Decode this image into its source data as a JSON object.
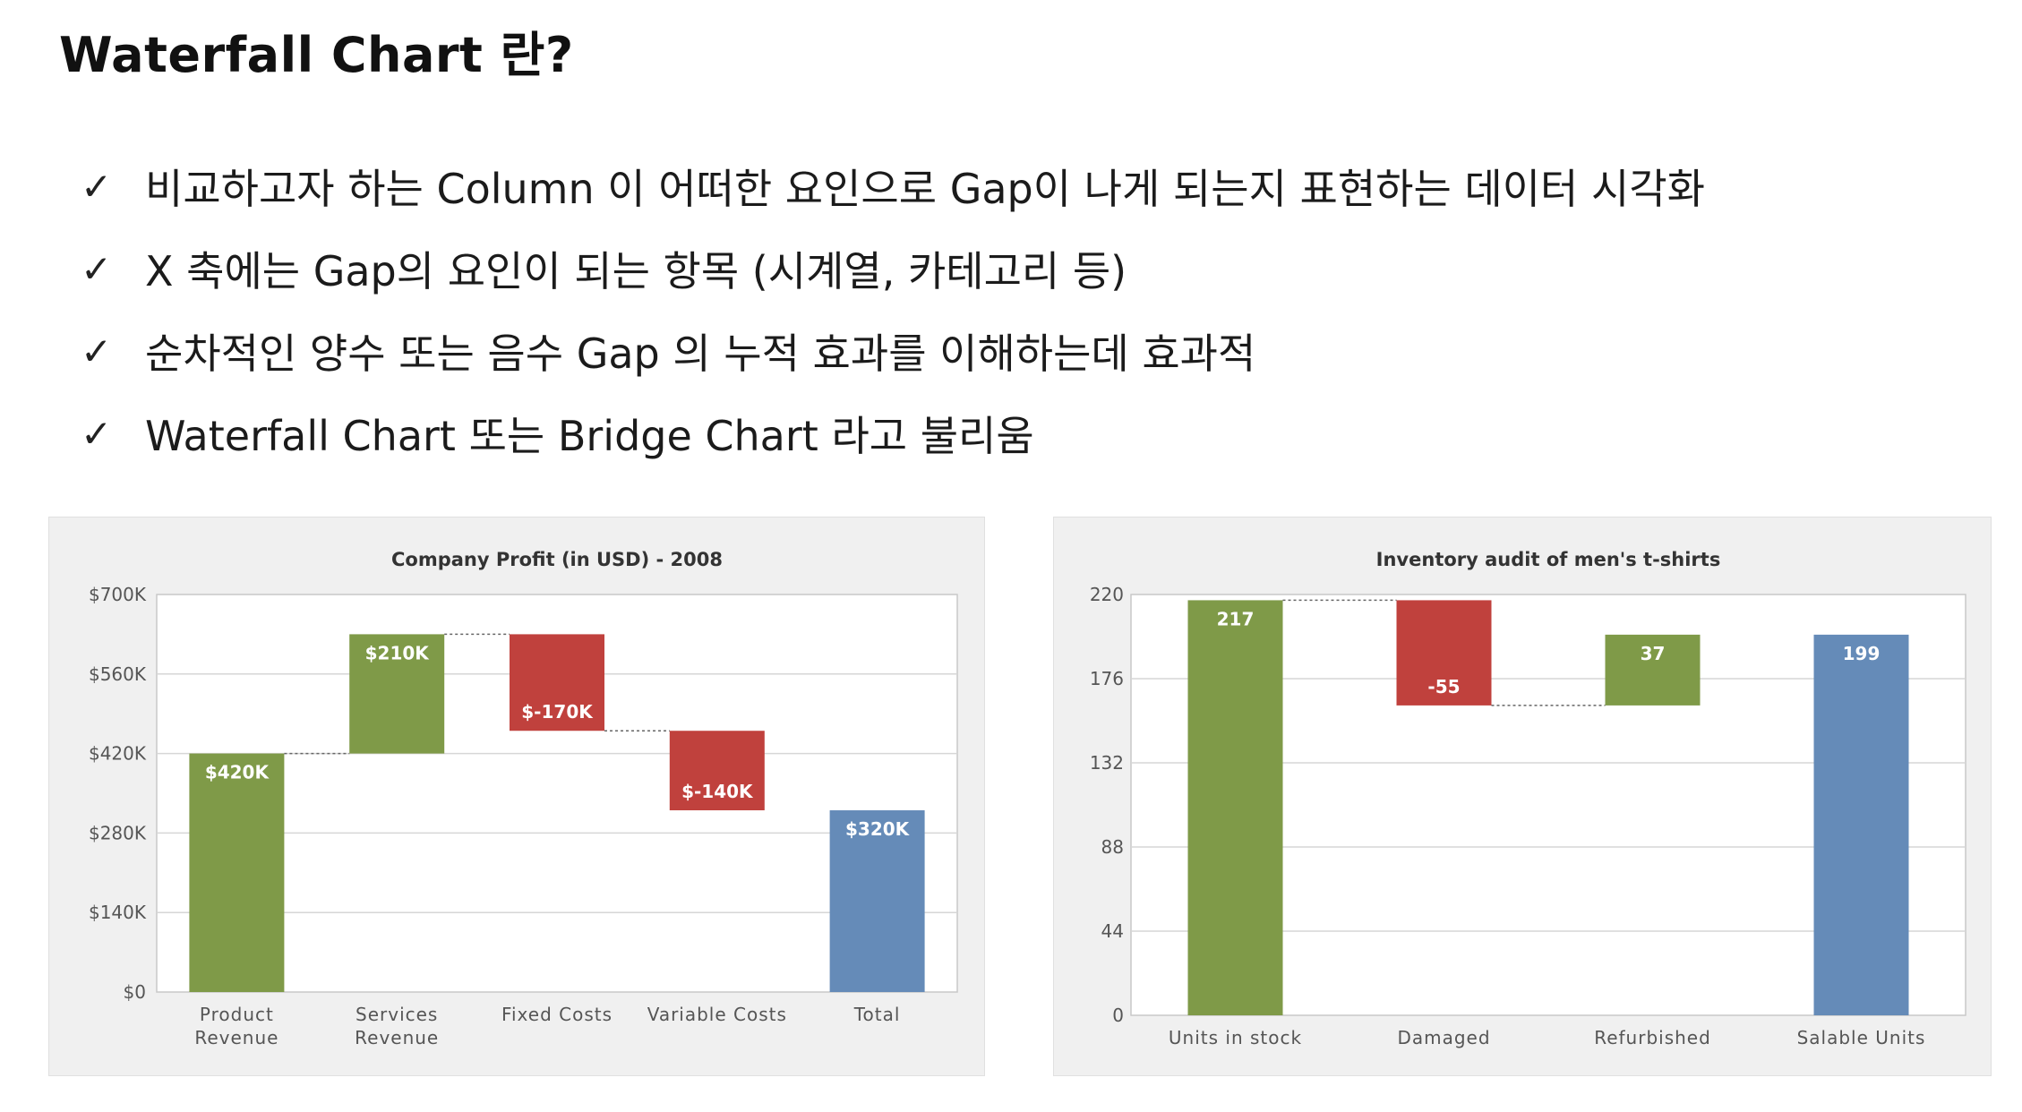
{
  "title": "Waterfall Chart 란?",
  "bullets": [
    {
      "mark": "✓",
      "text": "비교하고자 하는 Column 이 어떠한 요인으로 Gap이 나게 되는지 표현하는 데이터 시각화"
    },
    {
      "mark": "✓",
      "text": "X 축에는 Gap의 요인이 되는 항목 (시계열, 카테고리 등)"
    },
    {
      "mark": "✓",
      "text": "순차적인 양수 또는 음수 Gap 의 누적 효과를 이해하는데 효과적"
    },
    {
      "mark": "✓",
      "text": "Waterfall Chart 또는 Bridge Chart 라고 불리움"
    }
  ],
  "colors": {
    "increase": "#7f9a48",
    "decrease": "#c0413d",
    "total": "#658bb8",
    "grid": "#d6d6d6",
    "axis_text": "#555555"
  },
  "chart_data": [
    {
      "type": "bar",
      "subtype": "waterfall",
      "title": "Company Profit (in USD) - 2008",
      "categories": [
        [
          "Product",
          "Revenue"
        ],
        [
          "Services",
          "Revenue"
        ],
        [
          "Fixed Costs"
        ],
        [
          "Variable Costs"
        ],
        [
          "Total"
        ]
      ],
      "values": [
        420,
        210,
        -170,
        -140,
        320
      ],
      "kinds": [
        "increase",
        "increase",
        "decrease",
        "decrease",
        "total"
      ],
      "data_labels": [
        "$420K",
        "$210K",
        "$-170K",
        "$-140K",
        "$320K"
      ],
      "yticks": [
        "$0",
        "$140K",
        "$280K",
        "$420K",
        "$560K",
        "$700K"
      ],
      "ylim": [
        0,
        700
      ],
      "grid": true,
      "xlabel": "",
      "ylabel": ""
    },
    {
      "type": "bar",
      "subtype": "waterfall",
      "title": "Inventory audit of men's t-shirts",
      "categories": [
        [
          "Units in stock"
        ],
        [
          "Damaged"
        ],
        [
          "Refurbished"
        ],
        [
          "Salable Units"
        ]
      ],
      "values": [
        217,
        -55,
        37,
        199
      ],
      "kinds": [
        "increase",
        "decrease",
        "increase",
        "total"
      ],
      "data_labels": [
        "217",
        "-55",
        "37",
        "199"
      ],
      "yticks": [
        "0",
        "44",
        "88",
        "132",
        "176",
        "220"
      ],
      "ylim": [
        0,
        220
      ],
      "grid": true,
      "xlabel": "",
      "ylabel": ""
    }
  ]
}
